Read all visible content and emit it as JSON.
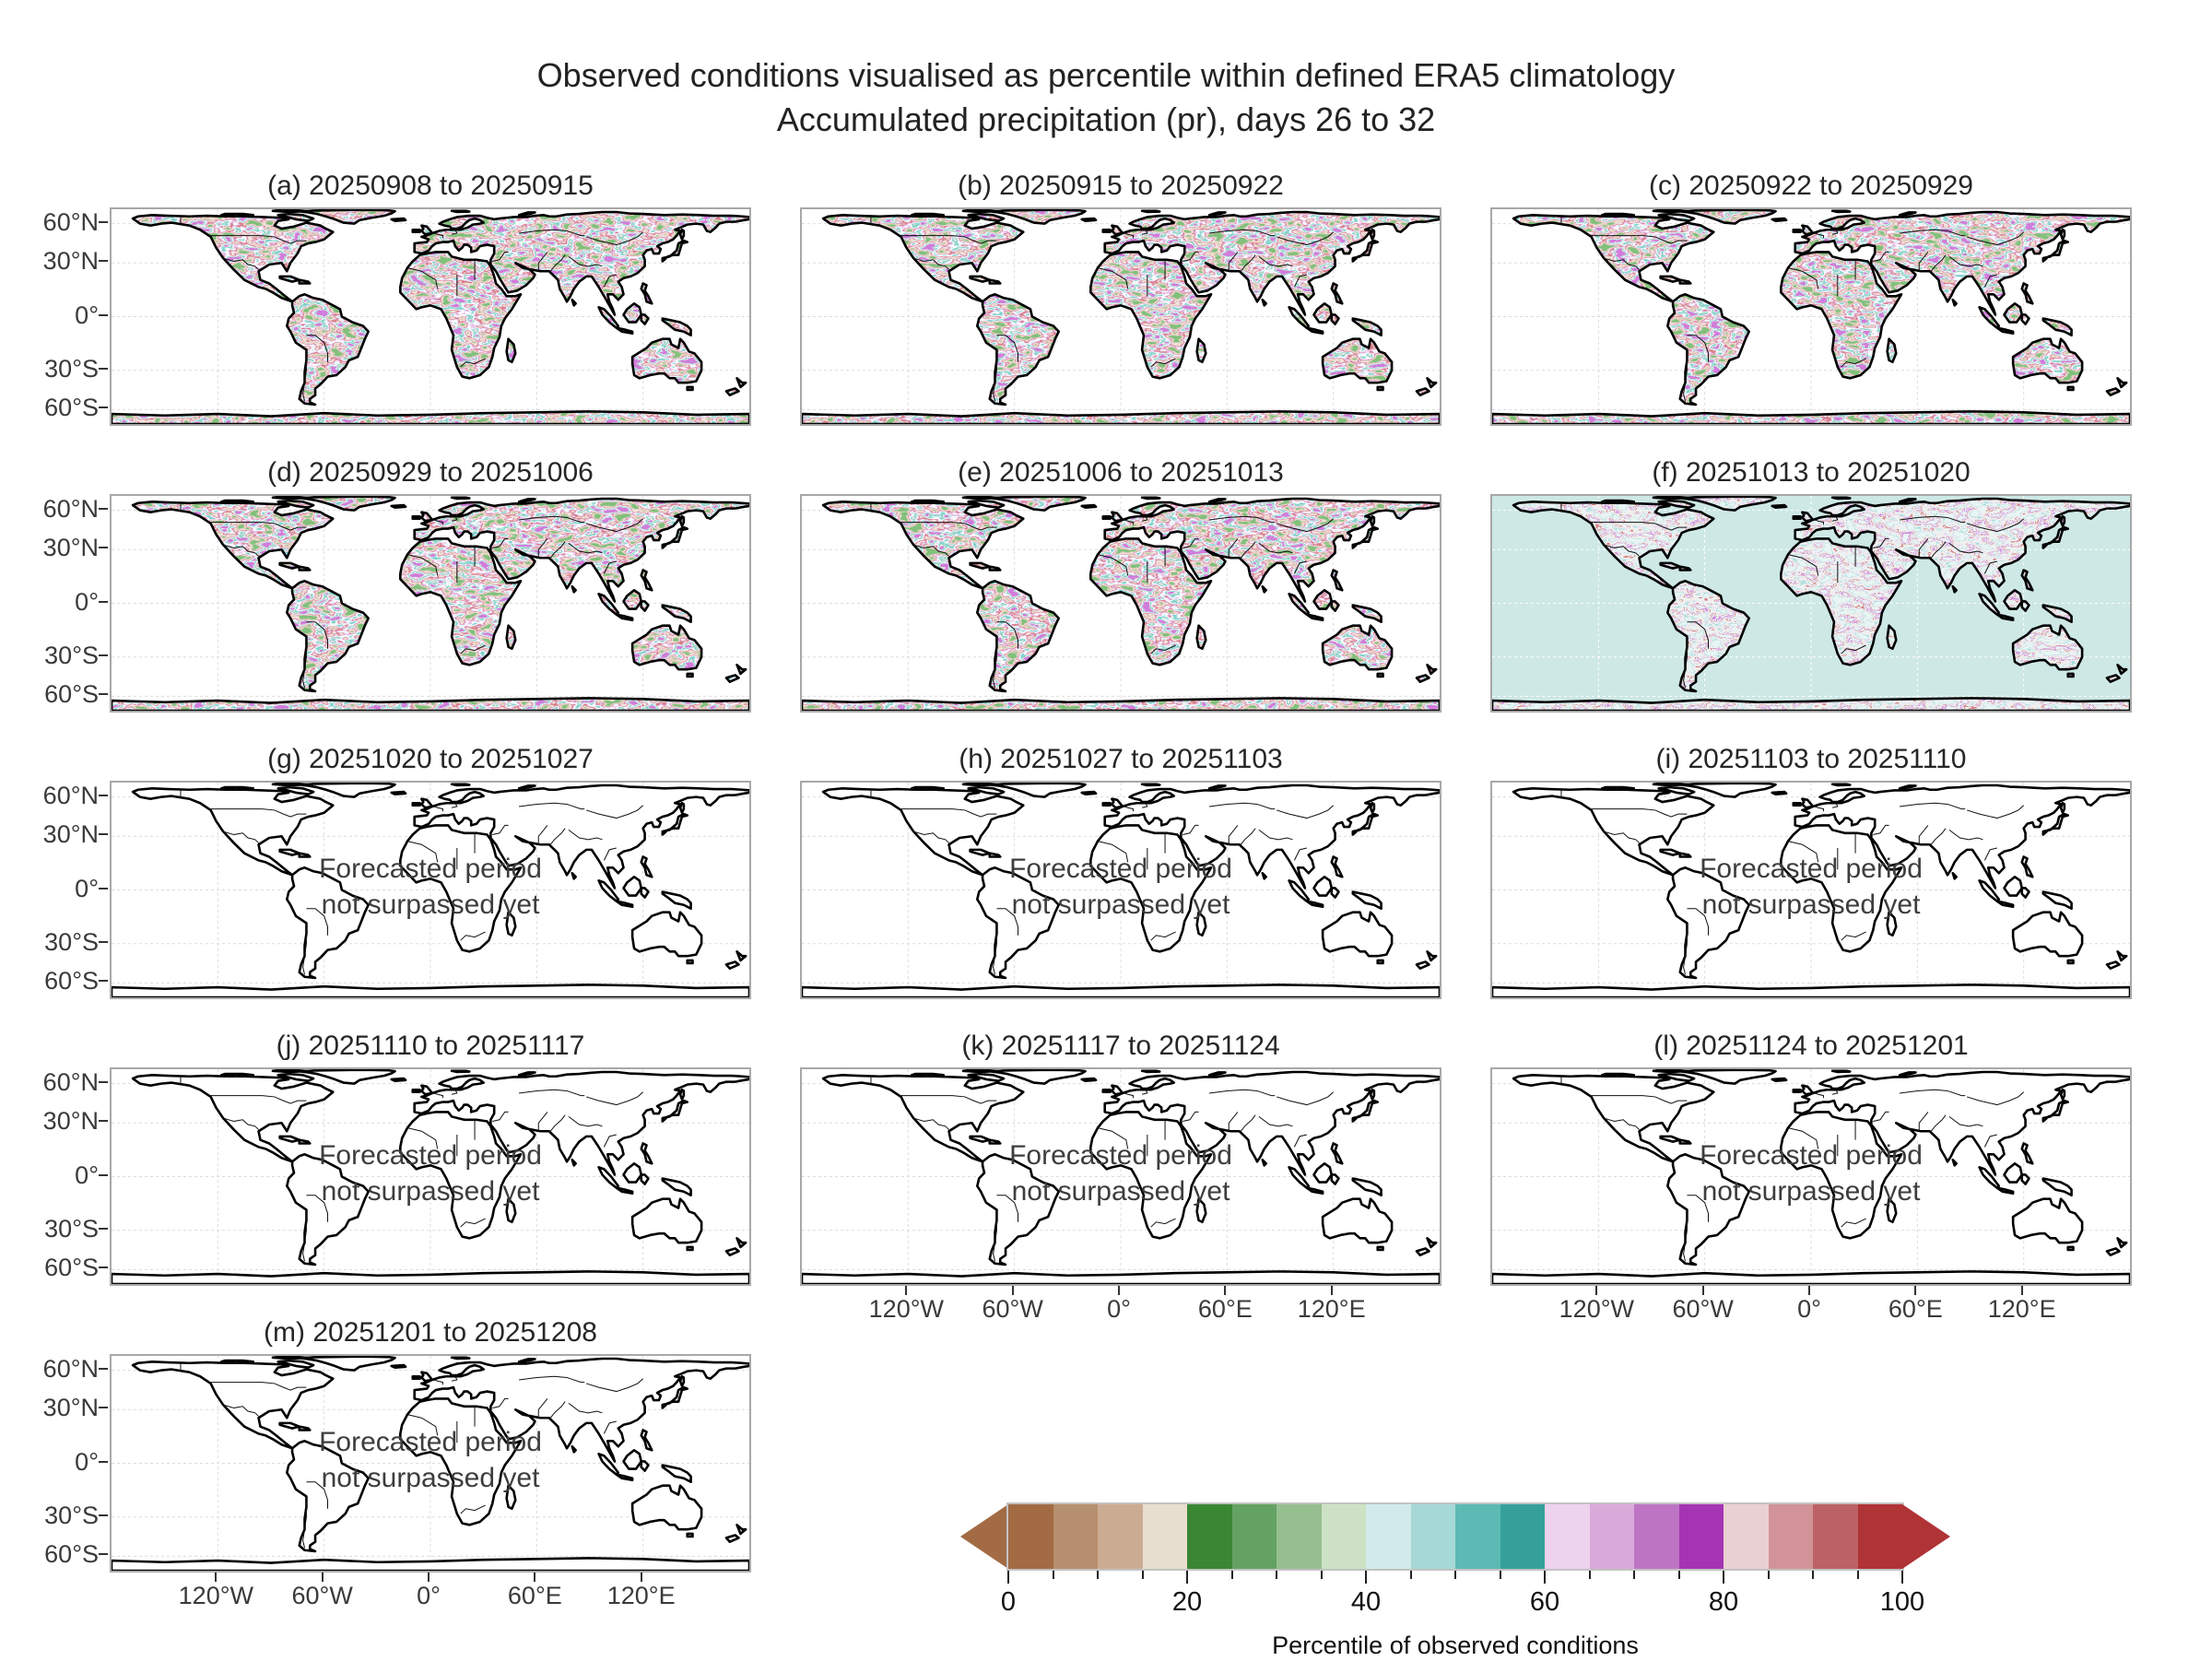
{
  "figure": {
    "title_line1": "Observed conditions visualised as percentile within defined ERA5 climatology",
    "title_line2": "Accumulated precipitation (pr), days 26 to 32"
  },
  "axes": {
    "y_tick_labels": [
      "60°N",
      "30°N",
      "0°",
      "30°S",
      "60°S"
    ],
    "x_tick_labels": [
      "120°W",
      "60°W",
      "0°",
      "60°E",
      "120°E"
    ]
  },
  "panels": [
    {
      "id": "a",
      "title": "(a) 20250908 to 20250915",
      "state": "observed"
    },
    {
      "id": "b",
      "title": "(b) 20250915 to 20250922",
      "state": "observed"
    },
    {
      "id": "c",
      "title": "(c) 20250922 to 20250929",
      "state": "observed"
    },
    {
      "id": "d",
      "title": "(d) 20250929 to 20251006",
      "state": "observed"
    },
    {
      "id": "e",
      "title": "(e) 20251006 to 20251013",
      "state": "observed"
    },
    {
      "id": "f",
      "title": "(f) 20251013 to 20251020",
      "state": "observed-partial"
    },
    {
      "id": "g",
      "title": "(g) 20251020 to 20251027",
      "state": "forecast"
    },
    {
      "id": "h",
      "title": "(h) 20251027 to 20251103",
      "state": "forecast"
    },
    {
      "id": "i",
      "title": "(i) 20251103 to 20251110",
      "state": "forecast"
    },
    {
      "id": "j",
      "title": "(j) 20251110 to 20251117",
      "state": "forecast"
    },
    {
      "id": "k",
      "title": "(k) 20251117 to 20251124",
      "state": "forecast"
    },
    {
      "id": "l",
      "title": "(l) 20251124 to 20251201",
      "state": "forecast"
    },
    {
      "id": "m",
      "title": "(m) 20251201 to 20251208",
      "state": "forecast"
    }
  ],
  "forecast_placeholder": {
    "line1": "Forecasted period",
    "line2": "not surpassed yet"
  },
  "colorbar": {
    "label": "Percentile of observed conditions",
    "tick_labels": [
      "0",
      "20",
      "40",
      "60",
      "80",
      "100"
    ],
    "minor_tick_step": 5,
    "colors": [
      "#a26b44",
      "#b68f6e",
      "#cbac92",
      "#e8decf",
      "#3a8733",
      "#64a263",
      "#96bf90",
      "#cde2c5",
      "#d3eaea",
      "#a6d8d6",
      "#5db9b3",
      "#35a09a",
      "#edd3ed",
      "#d9a9da",
      "#bd74c3",
      "#a434b4",
      "#e9d0d2",
      "#d19398",
      "#bc6165",
      "#b03336"
    ],
    "under_arrow_color": "#a26b44",
    "over_arrow_color": "#b03336"
  },
  "map_style": {
    "ocean": "#ffffff",
    "masked_ocean": "#cde8e5",
    "coastline": "#000000",
    "frame": "#a8a8a8",
    "gridline": "#dcdcdc",
    "masked_gridline": "#ffffff"
  }
}
